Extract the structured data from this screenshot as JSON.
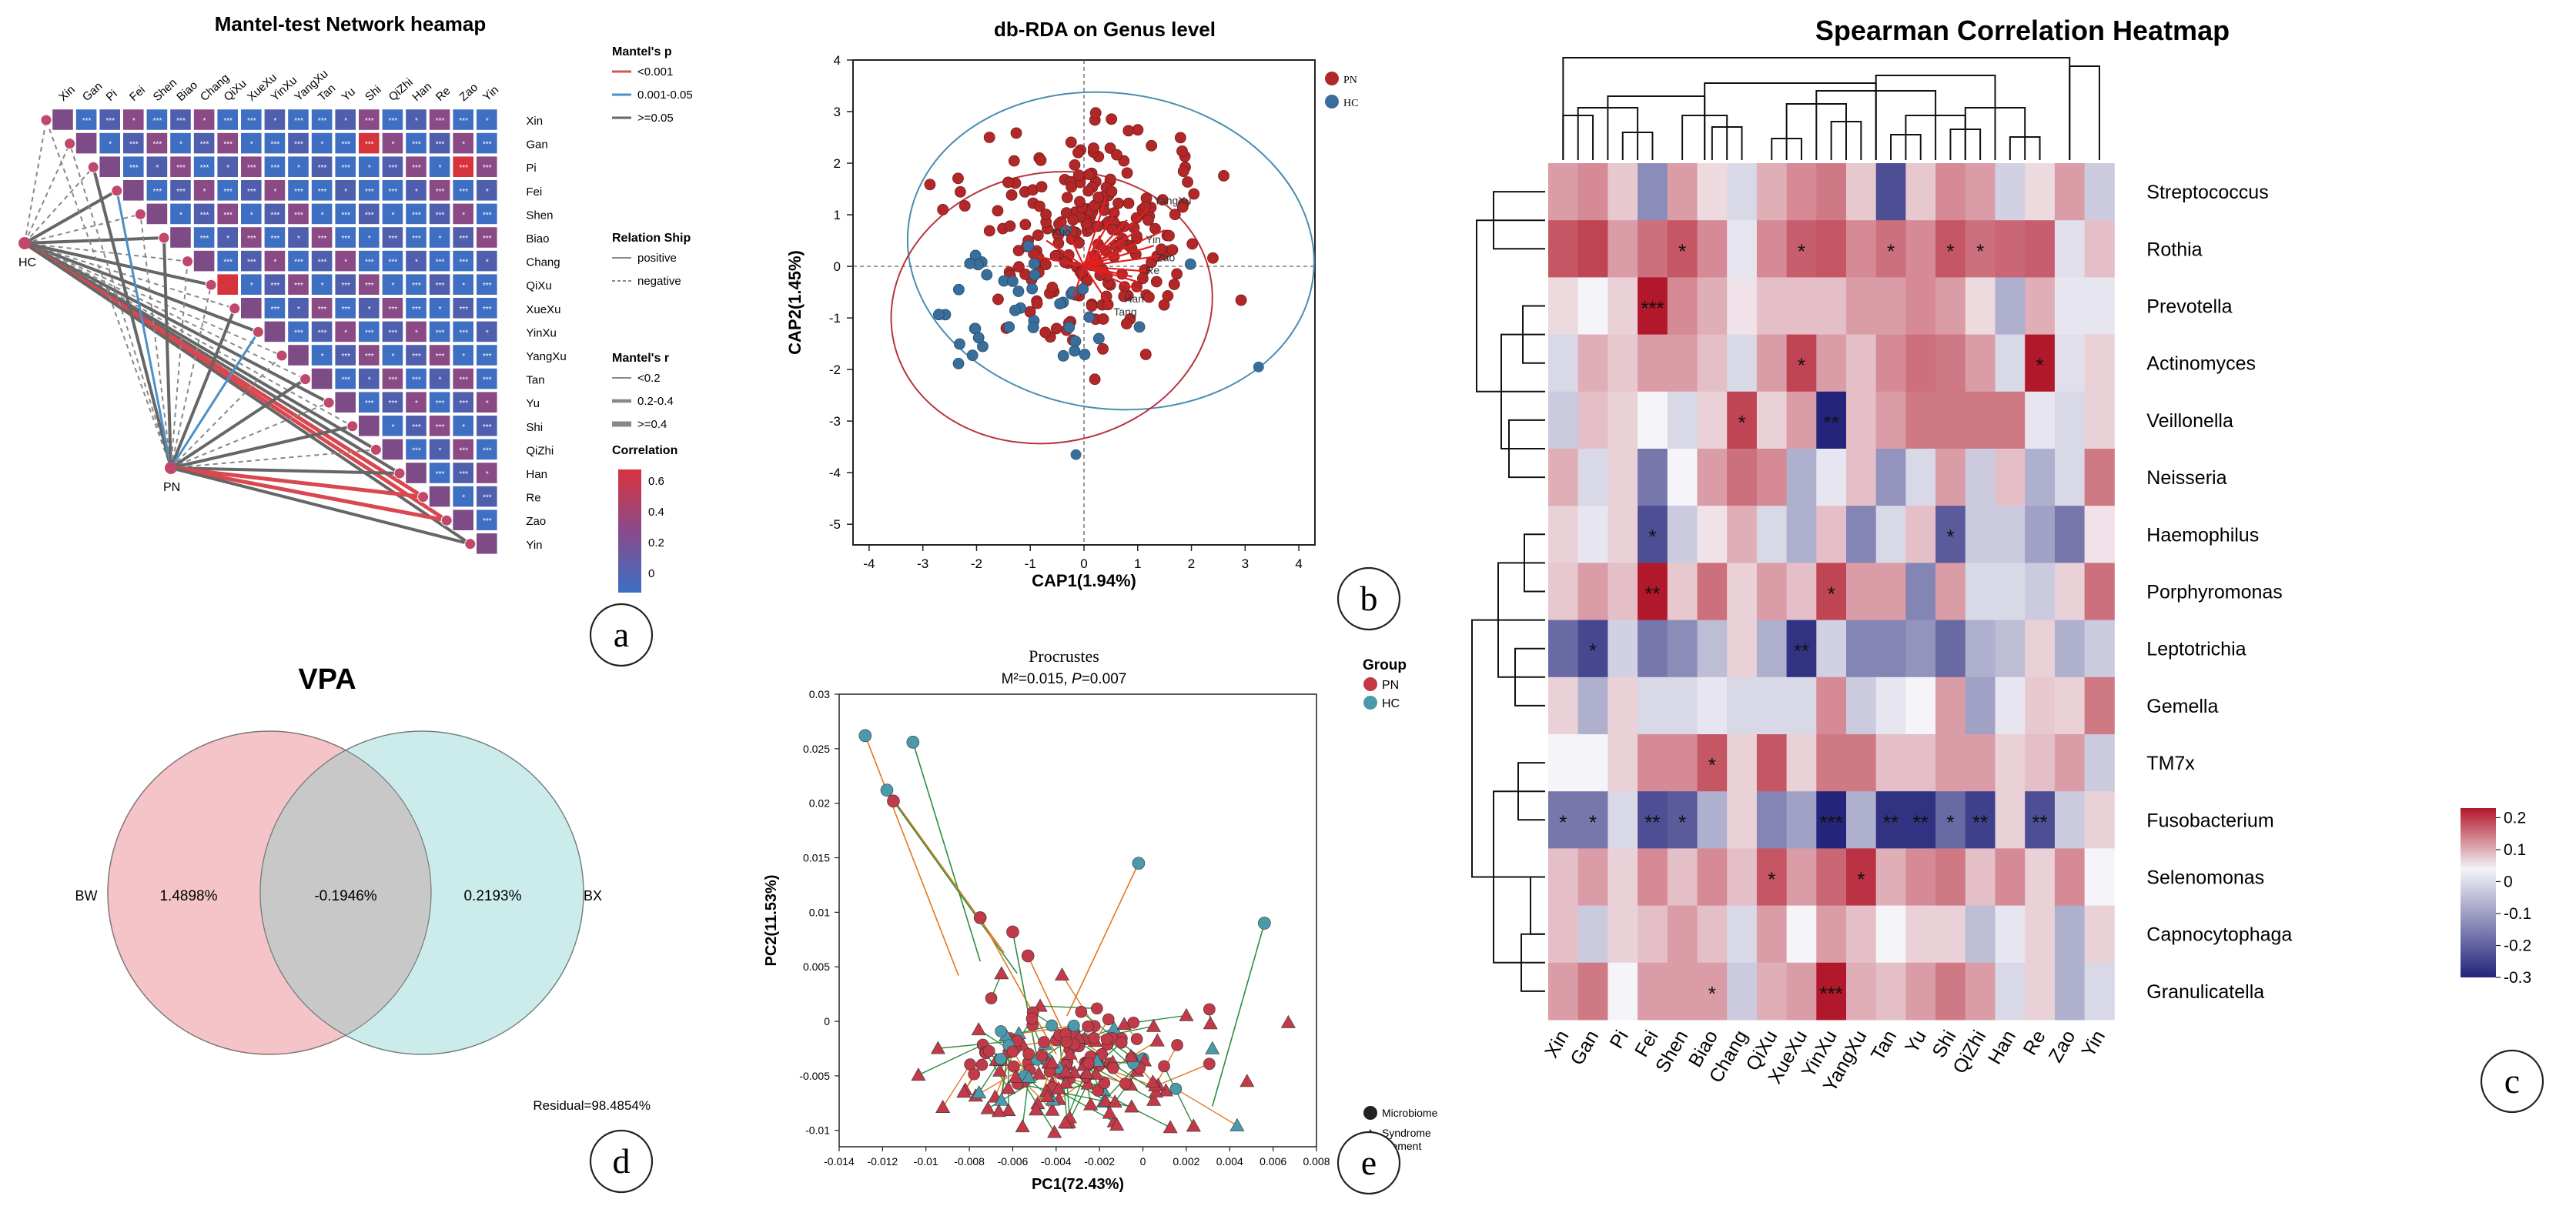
{
  "panel_labels": {
    "a": "a",
    "b": "b",
    "c": "c",
    "d": "d",
    "e": "e"
  },
  "mantel": {
    "title": "Mantel-test Network heamap",
    "variables": [
      "Xin",
      "Gan",
      "Pi",
      "Fei",
      "Shen",
      "Biao",
      "Chang",
      "QiXu",
      "XueXu",
      "YinXu",
      "YangXu",
      "Tan",
      "Yu",
      "Shi",
      "QiZhi",
      "Han",
      "Re",
      "Zao",
      "Yin"
    ],
    "hubs": [
      "HC",
      "PN"
    ],
    "legend_p_title": "Mantel's p",
    "legend_p_items": [
      "<0.001",
      "0.001-0.05",
      ">=0.05"
    ],
    "legend_p_colors": [
      "#d9534f",
      "#4a90c8",
      "#666666"
    ],
    "legend_rel_title": "Relation Ship",
    "legend_rel_items": [
      "positive",
      "negative"
    ],
    "legend_r_title": "Mantel's r",
    "legend_r_items": [
      "<0.2",
      "0.2-0.4",
      ">=0.4"
    ],
    "legend_corr_title": "Correlation",
    "legend_corr_ticks": [
      "0.6",
      "0.4",
      "0.2",
      "0"
    ],
    "red_cells": [
      [
        1,
        13
      ],
      [
        7,
        7
      ],
      [
        2,
        17
      ]
    ],
    "links_HC": [
      {
        "to": "Xin",
        "style": "dashed"
      },
      {
        "to": "Gan",
        "style": "dashed"
      },
      {
        "to": "Pi",
        "style": "dashed"
      },
      {
        "to": "Fei",
        "style": "solid"
      },
      {
        "to": "Shen",
        "style": "dashed"
      },
      {
        "to": "Biao",
        "style": "solid"
      },
      {
        "to": "Chang",
        "style": "dashed"
      },
      {
        "to": "QiXu",
        "style": "solid"
      },
      {
        "to": "XueXu",
        "style": "dashed"
      },
      {
        "to": "YinXu",
        "style": "solid"
      },
      {
        "to": "YangXu",
        "style": "dashed"
      },
      {
        "to": "Tan",
        "style": "dashed"
      },
      {
        "to": "Yu",
        "style": "solid"
      },
      {
        "to": "Shi",
        "style": "dashed"
      },
      {
        "to": "QiZhi",
        "style": "solid"
      },
      {
        "to": "Han",
        "style": "solid"
      },
      {
        "to": "Re",
        "style": "red"
      },
      {
        "to": "Zao",
        "style": "red"
      },
      {
        "to": "Yin",
        "style": "solid"
      }
    ],
    "links_PN": [
      {
        "to": "Xin",
        "style": "dashed"
      },
      {
        "to": "Gan",
        "style": "dashed"
      },
      {
        "to": "Pi",
        "style": "solid"
      },
      {
        "to": "Fei",
        "style": "blue"
      },
      {
        "to": "Shen",
        "style": "dashed"
      },
      {
        "to": "Biao",
        "style": "solid"
      },
      {
        "to": "Chang",
        "style": "dashed"
      },
      {
        "to": "QiXu",
        "style": "dashed"
      },
      {
        "to": "XueXu",
        "style": "solid"
      },
      {
        "to": "YinXu",
        "style": "blue"
      },
      {
        "to": "YangXu",
        "style": "dashed"
      },
      {
        "to": "Tan",
        "style": "solid"
      },
      {
        "to": "Yu",
        "style": "dashed"
      },
      {
        "to": "Shi",
        "style": "solid"
      },
      {
        "to": "QiZhi",
        "style": "dashed"
      },
      {
        "to": "Han",
        "style": "solid"
      },
      {
        "to": "Re",
        "style": "red"
      },
      {
        "to": "Zao",
        "style": "red"
      },
      {
        "to": "Yin",
        "style": "solid"
      }
    ]
  },
  "dbrda": {
    "title": "db-RDA on Genus level",
    "xlabel": "CAP1(1.94%)",
    "ylabel": "CAP2(1.45%)",
    "xticks": [
      -4,
      -3,
      -2,
      -1,
      0,
      1,
      2,
      3,
      4
    ],
    "yticks": [
      4,
      3,
      2,
      1,
      0,
      -1,
      -2,
      -3,
      -4,
      -5
    ],
    "legend": [
      "PN",
      "HC"
    ],
    "colors": {
      "PN": "#b22828",
      "HC": "#3a6e9a",
      "arrow": "#e02020"
    },
    "arrow_labels": [
      "YangXu",
      "Xuo",
      "Han",
      "Tang",
      "Yin",
      "Zao",
      "Re"
    ]
  },
  "vpa": {
    "title": "VPA",
    "left_label": "BW",
    "right_label": "BX",
    "left_value": "1.4898%",
    "overlap_value": "-0.1946%",
    "right_value": "0.2193%",
    "residual": "Residual=98.4854%",
    "colors": {
      "left": "#f4c4c8",
      "right": "#ccecec",
      "overlap": "#c8c8c8"
    }
  },
  "procrustes": {
    "title": "Procrustes",
    "subtitle_prefix": "M²=0.015, ",
    "subtitle_p": "P",
    "subtitle_suffix": "=0.007",
    "xlabel": "PC1(72.43%)",
    "ylabel": "PC2(11.53%)",
    "xticks": [
      "-0.014",
      "-0.012",
      "-0.01",
      "-0.008",
      "-0.006",
      "-0.004",
      "-0.002",
      "0",
      "0.002",
      "0.004",
      "0.006",
      "0.008"
    ],
    "yticks": [
      "0.03",
      "0.025",
      "0.02",
      "0.015",
      "0.01",
      "0.005",
      "0",
      "-0.005",
      "-0.01"
    ],
    "legend_title": "Group",
    "legend_groups": [
      "PN",
      "HC"
    ],
    "legend_shapes": [
      "Microbiome",
      "Syndrome Element"
    ],
    "colors": {
      "PN": "#c23a48",
      "HC": "#4a9aaa",
      "lineOrange": "#e07820",
      "lineGreen": "#2e8b3e"
    }
  },
  "spearman": {
    "title": "Spearman Correlation Heatmap",
    "columns": [
      "Xin",
      "Gan",
      "Pi",
      "Fei",
      "Shen",
      "Biao",
      "Chang",
      "QiXu",
      "XueXu",
      "YinXu",
      "YangXu",
      "Tan",
      "Yu",
      "Shi",
      "QiZhi",
      "Han",
      "Re",
      "Zao",
      "Yin"
    ],
    "rows": [
      "Streptococcus",
      "Rothia",
      "Prevotella",
      "Actinomyces",
      "Veillonella",
      "Neisseria",
      "Haemophilus",
      "Porphyromonas",
      "Leptotrichia",
      "Gemella",
      "TM7x",
      "Fusobacterium",
      "Selenomonas",
      "Capnocytophaga",
      "Granulicatella"
    ],
    "colorbar_ticks": [
      "0.2",
      "0.1",
      "0",
      "-0.1",
      "-0.2",
      "-0.3"
    ],
    "values": [
      [
        0.1,
        0.12,
        0.05,
        -0.15,
        0.1,
        0.03,
        -0.04,
        0.08,
        0.12,
        0.14,
        0.05,
        -0.24,
        0.05,
        0.12,
        0.1,
        -0.05,
        0.03,
        0.1,
        -0.06
      ],
      [
        0.18,
        0.2,
        0.1,
        0.15,
        0.18,
        0.12,
        -0.02,
        0.12,
        0.17,
        0.18,
        0.12,
        0.15,
        0.12,
        0.18,
        0.15,
        0.16,
        0.17,
        -0.03,
        0.06
      ],
      [
        0.03,
        0.0,
        0.04,
        0.28,
        0.12,
        0.08,
        0.02,
        0.06,
        0.06,
        0.06,
        0.1,
        0.1,
        0.12,
        0.1,
        0.03,
        -0.1,
        0.08,
        -0.02,
        -0.02
      ],
      [
        -0.04,
        0.08,
        0.05,
        0.1,
        0.1,
        0.06,
        -0.04,
        0.1,
        0.2,
        0.1,
        0.06,
        0.12,
        0.15,
        0.14,
        0.1,
        -0.04,
        0.25,
        -0.03,
        0.04
      ],
      [
        -0.06,
        0.06,
        0.04,
        0.0,
        -0.04,
        0.04,
        0.2,
        0.04,
        0.1,
        -0.3,
        0.06,
        0.1,
        0.14,
        0.14,
        0.14,
        0.14,
        -0.02,
        -0.04,
        0.04
      ],
      [
        0.08,
        -0.04,
        0.04,
        -0.18,
        0.0,
        0.1,
        0.15,
        0.12,
        -0.1,
        -0.02,
        0.06,
        -0.14,
        -0.04,
        0.1,
        -0.06,
        0.06,
        -0.1,
        -0.04,
        0.14
      ],
      [
        0.04,
        -0.02,
        0.04,
        -0.24,
        -0.06,
        0.02,
        0.08,
        -0.04,
        -0.1,
        0.06,
        -0.16,
        -0.04,
        0.06,
        -0.22,
        -0.06,
        -0.06,
        -0.12,
        -0.18,
        0.02
      ],
      [
        0.05,
        0.1,
        0.06,
        0.25,
        0.05,
        0.15,
        0.04,
        0.1,
        0.06,
        0.2,
        0.1,
        0.1,
        -0.16,
        0.1,
        -0.04,
        -0.04,
        -0.06,
        0.04,
        0.15
      ],
      [
        -0.2,
        -0.25,
        -0.05,
        -0.18,
        -0.15,
        -0.08,
        0.04,
        -0.1,
        -0.28,
        -0.05,
        -0.16,
        -0.16,
        -0.14,
        -0.2,
        -0.1,
        -0.08,
        0.04,
        -0.1,
        -0.06
      ],
      [
        0.04,
        -0.1,
        0.04,
        -0.04,
        -0.04,
        -0.02,
        -0.04,
        -0.04,
        -0.04,
        0.12,
        -0.06,
        -0.02,
        0.0,
        0.1,
        -0.12,
        -0.02,
        0.05,
        0.04,
        0.14
      ],
      [
        0.0,
        0.0,
        0.04,
        0.12,
        0.12,
        0.18,
        0.04,
        0.18,
        0.04,
        0.14,
        0.14,
        0.06,
        0.06,
        0.1,
        0.1,
        0.04,
        0.06,
        0.1,
        -0.06
      ],
      [
        -0.18,
        -0.18,
        -0.04,
        -0.24,
        -0.22,
        -0.1,
        0.04,
        -0.16,
        -0.12,
        -0.3,
        -0.1,
        -0.28,
        -0.28,
        -0.2,
        -0.26,
        0.04,
        -0.24,
        -0.06,
        0.04
      ],
      [
        0.06,
        0.1,
        0.04,
        0.12,
        0.06,
        0.12,
        0.06,
        0.18,
        0.1,
        0.16,
        0.22,
        0.08,
        0.12,
        0.14,
        0.06,
        0.12,
        0.04,
        0.12,
        0.0
      ],
      [
        0.06,
        -0.06,
        0.04,
        0.06,
        0.1,
        0.06,
        -0.04,
        0.1,
        0.0,
        0.1,
        0.06,
        0.0,
        0.04,
        0.04,
        -0.08,
        -0.02,
        0.04,
        -0.1,
        0.04
      ],
      [
        0.1,
        0.14,
        0.0,
        0.1,
        0.1,
        0.1,
        -0.06,
        0.08,
        0.1,
        0.3,
        0.08,
        0.06,
        0.1,
        0.14,
        0.1,
        -0.04,
        0.04,
        -0.1,
        -0.04
      ]
    ],
    "stars": [
      [
        1,
        4,
        "*"
      ],
      [
        1,
        8,
        "*"
      ],
      [
        1,
        11,
        "*"
      ],
      [
        1,
        13,
        "*"
      ],
      [
        1,
        14,
        "*"
      ],
      [
        2,
        3,
        "***"
      ],
      [
        3,
        8,
        "*"
      ],
      [
        3,
        16,
        "*"
      ],
      [
        4,
        6,
        "*"
      ],
      [
        4,
        9,
        "**"
      ],
      [
        6,
        3,
        "*"
      ],
      [
        6,
        13,
        "*"
      ],
      [
        7,
        3,
        "**"
      ],
      [
        7,
        9,
        "*"
      ],
      [
        8,
        1,
        "*"
      ],
      [
        8,
        8,
        "**"
      ],
      [
        10,
        5,
        "*"
      ],
      [
        11,
        0,
        "*"
      ],
      [
        11,
        1,
        "*"
      ],
      [
        11,
        3,
        "**"
      ],
      [
        11,
        4,
        "*"
      ],
      [
        11,
        9,
        "***"
      ],
      [
        11,
        11,
        "**"
      ],
      [
        11,
        12,
        "**"
      ],
      [
        11,
        13,
        "*"
      ],
      [
        11,
        14,
        "**"
      ],
      [
        11,
        16,
        "**"
      ],
      [
        12,
        7,
        "*"
      ],
      [
        12,
        10,
        "*"
      ],
      [
        14,
        5,
        "*"
      ],
      [
        14,
        9,
        "***"
      ]
    ]
  }
}
